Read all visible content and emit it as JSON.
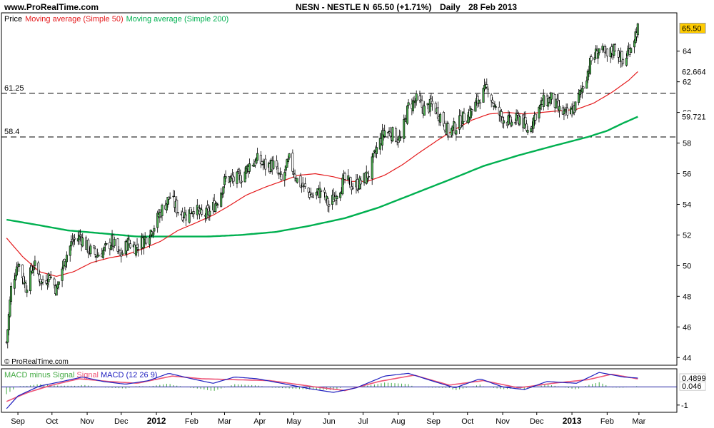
{
  "header": {
    "site": "www.ProRealTime.com",
    "instrument": "NESN - NESTLE N",
    "price_change": "65.50 (+1.71%)",
    "period": "Daily",
    "date": "28 Feb 2013"
  },
  "copyright": "© ProRealTime.com",
  "colors": {
    "ma50": "#e41a1c",
    "ma200": "#00b050",
    "up_candle": "#4caf50",
    "down_candle": "#ffffff",
    "last_price_bg": "#ffcc00",
    "macd_line": "#2020c0",
    "signal_line": "#ee5577",
    "histogram": "#44aa44"
  },
  "chart_data": [
    {
      "type": "candlestick",
      "legend": [
        {
          "label": "Price",
          "color": "#000000"
        },
        {
          "label": "Moving average (Simple 50)",
          "color": "#e41a1c"
        },
        {
          "label": "Moving average (Simple 200)",
          "color": "#00b050"
        }
      ],
      "ylim": [
        43.5,
        66.5
      ],
      "yticks": [
        44,
        46,
        48,
        50,
        52,
        54,
        56,
        58,
        60,
        62,
        64
      ],
      "x_range": [
        "2011-08-20",
        "2013-03-08"
      ],
      "x_ticks": [
        {
          "label": "Sep",
          "date": "2011-09-01"
        },
        {
          "label": "Oct",
          "date": "2011-10-01"
        },
        {
          "label": "Nov",
          "date": "2011-11-01"
        },
        {
          "label": "Dec",
          "date": "2011-12-01"
        },
        {
          "label": "2012",
          "date": "2012-01-01",
          "bold": true
        },
        {
          "label": "Feb",
          "date": "2012-02-01"
        },
        {
          "label": "Mar",
          "date": "2012-03-01"
        },
        {
          "label": "Apr",
          "date": "2012-04-01"
        },
        {
          "label": "May",
          "date": "2012-05-01"
        },
        {
          "label": "Jun",
          "date": "2012-06-01"
        },
        {
          "label": "Jul",
          "date": "2012-07-01"
        },
        {
          "label": "Aug",
          "date": "2012-08-01"
        },
        {
          "label": "Sep",
          "date": "2012-09-01"
        },
        {
          "label": "Oct",
          "date": "2012-10-01"
        },
        {
          "label": "Nov",
          "date": "2012-11-01"
        },
        {
          "label": "Dec",
          "date": "2012-12-01"
        },
        {
          "label": "2013",
          "date": "2013-01-01",
          "bold": true
        },
        {
          "label": "Feb",
          "date": "2013-02-01"
        },
        {
          "label": "Mar",
          "date": "2013-03-01"
        }
      ],
      "horizontal_lines": [
        {
          "value": 61.25,
          "label": "61.25",
          "style": "dashed"
        },
        {
          "value": 58.4,
          "label": "58.4",
          "style": "dashed"
        }
      ],
      "price_path": [
        {
          "date": "2011-08-22",
          "close": 45.0
        },
        {
          "date": "2011-08-26",
          "close": 48.5
        },
        {
          "date": "2011-09-01",
          "close": 50.3
        },
        {
          "date": "2011-09-08",
          "close": 48.6
        },
        {
          "date": "2011-09-15",
          "close": 50.1
        },
        {
          "date": "2011-09-22",
          "close": 48.9
        },
        {
          "date": "2011-09-29",
          "close": 49.4
        },
        {
          "date": "2011-10-05",
          "close": 48.4
        },
        {
          "date": "2011-10-12",
          "close": 50.4
        },
        {
          "date": "2011-10-19",
          "close": 51.6
        },
        {
          "date": "2011-10-26",
          "close": 51.9
        },
        {
          "date": "2011-11-02",
          "close": 51.1
        },
        {
          "date": "2011-11-09",
          "close": 50.7
        },
        {
          "date": "2011-11-16",
          "close": 51.0
        },
        {
          "date": "2011-11-23",
          "close": 51.6
        },
        {
          "date": "2011-11-30",
          "close": 50.6
        },
        {
          "date": "2011-12-07",
          "close": 51.5
        },
        {
          "date": "2011-12-14",
          "close": 51.2
        },
        {
          "date": "2011-12-21",
          "close": 51.7
        },
        {
          "date": "2011-12-30",
          "close": 52.6
        },
        {
          "date": "2012-01-06",
          "close": 53.7
        },
        {
          "date": "2012-01-13",
          "close": 54.5
        },
        {
          "date": "2012-01-20",
          "close": 53.6
        },
        {
          "date": "2012-01-27",
          "close": 53.3
        },
        {
          "date": "2012-02-03",
          "close": 53.8
        },
        {
          "date": "2012-02-10",
          "close": 53.2
        },
        {
          "date": "2012-02-17",
          "close": 53.5
        },
        {
          "date": "2012-02-24",
          "close": 54.3
        },
        {
          "date": "2012-03-02",
          "close": 55.7
        },
        {
          "date": "2012-03-09",
          "close": 55.6
        },
        {
          "date": "2012-03-16",
          "close": 55.8
        },
        {
          "date": "2012-03-23",
          "close": 56.6
        },
        {
          "date": "2012-03-30",
          "close": 56.9
        },
        {
          "date": "2012-04-06",
          "close": 56.5
        },
        {
          "date": "2012-04-13",
          "close": 56.6
        },
        {
          "date": "2012-04-20",
          "close": 55.5
        },
        {
          "date": "2012-04-27",
          "close": 56.9
        },
        {
          "date": "2012-05-04",
          "close": 55.6
        },
        {
          "date": "2012-05-11",
          "close": 55.0
        },
        {
          "date": "2012-05-18",
          "close": 54.5
        },
        {
          "date": "2012-05-25",
          "close": 54.9
        },
        {
          "date": "2012-06-01",
          "close": 53.9
        },
        {
          "date": "2012-06-08",
          "close": 54.8
        },
        {
          "date": "2012-06-15",
          "close": 55.6
        },
        {
          "date": "2012-06-22",
          "close": 55.2
        },
        {
          "date": "2012-06-29",
          "close": 55.4
        },
        {
          "date": "2012-07-06",
          "close": 56.0
        },
        {
          "date": "2012-07-13",
          "close": 57.6
        },
        {
          "date": "2012-07-20",
          "close": 58.8
        },
        {
          "date": "2012-07-27",
          "close": 58.6
        },
        {
          "date": "2012-08-03",
          "close": 58.2
        },
        {
          "date": "2012-08-10",
          "close": 60.4
        },
        {
          "date": "2012-08-17",
          "close": 60.8
        },
        {
          "date": "2012-08-24",
          "close": 60.2
        },
        {
          "date": "2012-08-31",
          "close": 60.5
        },
        {
          "date": "2012-09-07",
          "close": 59.8
        },
        {
          "date": "2012-09-14",
          "close": 58.7
        },
        {
          "date": "2012-09-21",
          "close": 59.1
        },
        {
          "date": "2012-09-28",
          "close": 59.7
        },
        {
          "date": "2012-10-05",
          "close": 60.1
        },
        {
          "date": "2012-10-12",
          "close": 61.0
        },
        {
          "date": "2012-10-19",
          "close": 61.6
        },
        {
          "date": "2012-10-26",
          "close": 60.1
        },
        {
          "date": "2012-11-02",
          "close": 59.6
        },
        {
          "date": "2012-11-09",
          "close": 59.3
        },
        {
          "date": "2012-11-16",
          "close": 59.7
        },
        {
          "date": "2012-11-23",
          "close": 58.8
        },
        {
          "date": "2012-11-30",
          "close": 59.9
        },
        {
          "date": "2012-12-07",
          "close": 60.7
        },
        {
          "date": "2012-12-14",
          "close": 60.9
        },
        {
          "date": "2012-12-21",
          "close": 60.1
        },
        {
          "date": "2012-12-28",
          "close": 59.8
        },
        {
          "date": "2013-01-04",
          "close": 60.4
        },
        {
          "date": "2013-01-11",
          "close": 61.8
        },
        {
          "date": "2013-01-18",
          "close": 63.4
        },
        {
          "date": "2013-01-25",
          "close": 64.1
        },
        {
          "date": "2013-02-01",
          "close": 63.6
        },
        {
          "date": "2013-02-08",
          "close": 64.3
        },
        {
          "date": "2013-02-15",
          "close": 63.2
        },
        {
          "date": "2013-02-22",
          "close": 64.4
        },
        {
          "date": "2013-02-28",
          "close": 65.5
        }
      ],
      "ma50": [
        {
          "date": "2011-08-22",
          "value": 51.8
        },
        {
          "date": "2011-09-05",
          "value": 50.6
        },
        {
          "date": "2011-09-20",
          "value": 49.6
        },
        {
          "date": "2011-10-05",
          "value": 49.3
        },
        {
          "date": "2011-10-20",
          "value": 49.6
        },
        {
          "date": "2011-11-05",
          "value": 50.2
        },
        {
          "date": "2011-11-20",
          "value": 50.5
        },
        {
          "date": "2011-12-05",
          "value": 50.7
        },
        {
          "date": "2011-12-20",
          "value": 51.1
        },
        {
          "date": "2012-01-05",
          "value": 51.6
        },
        {
          "date": "2012-01-20",
          "value": 52.3
        },
        {
          "date": "2012-02-05",
          "value": 52.8
        },
        {
          "date": "2012-02-20",
          "value": 53.3
        },
        {
          "date": "2012-03-05",
          "value": 53.9
        },
        {
          "date": "2012-03-20",
          "value": 54.6
        },
        {
          "date": "2012-04-05",
          "value": 55.1
        },
        {
          "date": "2012-04-20",
          "value": 55.5
        },
        {
          "date": "2012-05-05",
          "value": 55.9
        },
        {
          "date": "2012-05-20",
          "value": 56.0
        },
        {
          "date": "2012-06-05",
          "value": 55.8
        },
        {
          "date": "2012-06-20",
          "value": 55.5
        },
        {
          "date": "2012-07-05",
          "value": 55.5
        },
        {
          "date": "2012-07-20",
          "value": 55.9
        },
        {
          "date": "2012-08-05",
          "value": 56.6
        },
        {
          "date": "2012-08-20",
          "value": 57.4
        },
        {
          "date": "2012-09-05",
          "value": 58.2
        },
        {
          "date": "2012-09-20",
          "value": 58.9
        },
        {
          "date": "2012-10-05",
          "value": 59.5
        },
        {
          "date": "2012-10-20",
          "value": 59.9
        },
        {
          "date": "2012-11-05",
          "value": 60.0
        },
        {
          "date": "2012-11-20",
          "value": 59.9
        },
        {
          "date": "2012-12-05",
          "value": 60.0
        },
        {
          "date": "2012-12-20",
          "value": 60.1
        },
        {
          "date": "2013-01-05",
          "value": 60.2
        },
        {
          "date": "2013-01-20",
          "value": 60.6
        },
        {
          "date": "2013-02-05",
          "value": 61.3
        },
        {
          "date": "2013-02-20",
          "value": 62.1
        },
        {
          "date": "2013-02-28",
          "value": 62.664
        }
      ],
      "ma200": [
        {
          "date": "2011-08-22",
          "value": 53.0
        },
        {
          "date": "2011-09-15",
          "value": 52.7
        },
        {
          "date": "2011-10-15",
          "value": 52.3
        },
        {
          "date": "2011-11-15",
          "value": 52.1
        },
        {
          "date": "2011-12-15",
          "value": 51.9
        },
        {
          "date": "2012-01-15",
          "value": 51.9
        },
        {
          "date": "2012-02-15",
          "value": 51.9
        },
        {
          "date": "2012-03-15",
          "value": 52.0
        },
        {
          "date": "2012-04-15",
          "value": 52.2
        },
        {
          "date": "2012-05-15",
          "value": 52.6
        },
        {
          "date": "2012-06-15",
          "value": 53.1
        },
        {
          "date": "2012-07-15",
          "value": 53.8
        },
        {
          "date": "2012-08-15",
          "value": 54.7
        },
        {
          "date": "2012-09-15",
          "value": 55.6
        },
        {
          "date": "2012-10-15",
          "value": 56.5
        },
        {
          "date": "2012-11-15",
          "value": 57.2
        },
        {
          "date": "2012-12-15",
          "value": 57.8
        },
        {
          "date": "2013-01-15",
          "value": 58.4
        },
        {
          "date": "2013-02-01",
          "value": 58.8
        },
        {
          "date": "2013-02-15",
          "value": 59.3
        },
        {
          "date": "2013-02-28",
          "value": 59.721
        }
      ],
      "last_values": [
        {
          "label": "65.50",
          "value": 65.5,
          "bg": "#ffcc00",
          "fg": "#000000"
        },
        {
          "label": "62.664",
          "value": 62.664,
          "bg": "#ffffff",
          "fg": "#e41a1c"
        },
        {
          "label": "59.721",
          "value": 59.721,
          "bg": "#ffffff",
          "fg": "#00b050"
        }
      ]
    },
    {
      "type": "macd",
      "legend": [
        {
          "label": "MACD minus Signal",
          "color": "#44aa44"
        },
        {
          "label": "Signal",
          "color": "#ee5577"
        },
        {
          "label": "MACD (12 26 9)",
          "color": "#2020c0"
        }
      ],
      "ylim": [
        -1.4,
        1.0
      ],
      "yticks": [
        {
          "label": "-1",
          "value": -1
        }
      ],
      "zero_line": 0,
      "macd": [
        {
          "date": "2011-08-22",
          "value": -1.2
        },
        {
          "date": "2011-09-01",
          "value": -0.5
        },
        {
          "date": "2011-09-20",
          "value": 0.05
        },
        {
          "date": "2011-10-10",
          "value": 0.3
        },
        {
          "date": "2011-10-28",
          "value": 0.55
        },
        {
          "date": "2011-11-15",
          "value": 0.3
        },
        {
          "date": "2011-12-05",
          "value": 0.15
        },
        {
          "date": "2011-12-25",
          "value": 0.35
        },
        {
          "date": "2012-01-12",
          "value": 0.75
        },
        {
          "date": "2012-02-01",
          "value": 0.45
        },
        {
          "date": "2012-02-20",
          "value": 0.2
        },
        {
          "date": "2012-03-10",
          "value": 0.55
        },
        {
          "date": "2012-03-30",
          "value": 0.45
        },
        {
          "date": "2012-04-20",
          "value": 0.2
        },
        {
          "date": "2012-05-15",
          "value": -0.1
        },
        {
          "date": "2012-06-05",
          "value": -0.3
        },
        {
          "date": "2012-06-25",
          "value": -0.05
        },
        {
          "date": "2012-07-20",
          "value": 0.6
        },
        {
          "date": "2012-08-10",
          "value": 0.75
        },
        {
          "date": "2012-08-30",
          "value": 0.35
        },
        {
          "date": "2012-09-20",
          "value": -0.05
        },
        {
          "date": "2012-10-12",
          "value": 0.45
        },
        {
          "date": "2012-11-01",
          "value": 0.0
        },
        {
          "date": "2012-11-20",
          "value": -0.15
        },
        {
          "date": "2012-12-10",
          "value": 0.3
        },
        {
          "date": "2013-01-05",
          "value": 0.2
        },
        {
          "date": "2013-01-25",
          "value": 0.8
        },
        {
          "date": "2013-02-15",
          "value": 0.55
        },
        {
          "date": "2013-02-28",
          "value": 0.4899
        }
      ],
      "signal": [
        {
          "date": "2011-08-22",
          "value": -0.8
        },
        {
          "date": "2011-09-10",
          "value": -0.3
        },
        {
          "date": "2011-10-01",
          "value": 0.1
        },
        {
          "date": "2011-10-25",
          "value": 0.45
        },
        {
          "date": "2011-11-20",
          "value": 0.3
        },
        {
          "date": "2011-12-15",
          "value": 0.2
        },
        {
          "date": "2012-01-15",
          "value": 0.6
        },
        {
          "date": "2012-02-10",
          "value": 0.45
        },
        {
          "date": "2012-03-10",
          "value": 0.4
        },
        {
          "date": "2012-04-10",
          "value": 0.35
        },
        {
          "date": "2012-05-20",
          "value": 0.0
        },
        {
          "date": "2012-06-15",
          "value": -0.2
        },
        {
          "date": "2012-07-15",
          "value": 0.3
        },
        {
          "date": "2012-08-15",
          "value": 0.65
        },
        {
          "date": "2012-09-15",
          "value": 0.1
        },
        {
          "date": "2012-10-15",
          "value": 0.35
        },
        {
          "date": "2012-11-15",
          "value": -0.05
        },
        {
          "date": "2012-12-15",
          "value": 0.2
        },
        {
          "date": "2013-01-15",
          "value": 0.4
        },
        {
          "date": "2013-02-05",
          "value": 0.7
        },
        {
          "date": "2013-02-28",
          "value": 0.4433
        }
      ],
      "last_values": [
        {
          "label": "0.4899",
          "value": 0.4899,
          "bg": "#ffffff",
          "fg": "#ee5577"
        },
        {
          "label": "0.046",
          "value": 0.046,
          "bg": "#ffffff",
          "fg": "#44aa44"
        }
      ]
    }
  ]
}
